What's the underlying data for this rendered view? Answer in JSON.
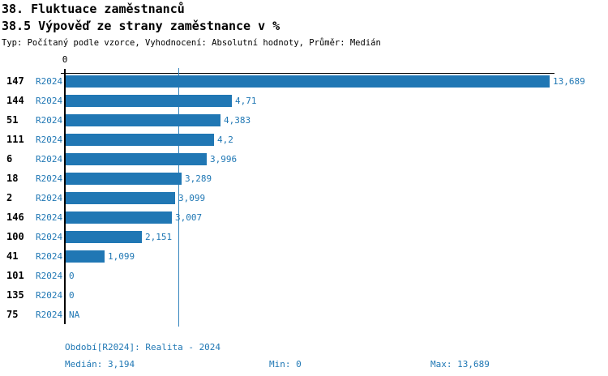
{
  "header": {
    "title_line1": "38. Fluktuace zaměstnanců",
    "title_line2": "38.5 Výpověď ze strany zaměstnance v %",
    "subtitle": "Typ: Počítaný podle vzorce, Vyhodnocení: Absolutní hodnoty, Průměr: Medián"
  },
  "chart": {
    "axis_zero_label": "0",
    "bar_color": "#2077b4",
    "median_line_color": "#3585bd",
    "max_value": 13.689,
    "median_value": 3.194,
    "rows": [
      {
        "id": "147",
        "period": "R2024",
        "value": 13.689,
        "value_label": "13,689"
      },
      {
        "id": "144",
        "period": "R2024",
        "value": 4.71,
        "value_label": "4,71"
      },
      {
        "id": "51",
        "period": "R2024",
        "value": 4.383,
        "value_label": "4,383"
      },
      {
        "id": "111",
        "period": "R2024",
        "value": 4.2,
        "value_label": "4,2"
      },
      {
        "id": "6",
        "period": "R2024",
        "value": 3.996,
        "value_label": "3,996"
      },
      {
        "id": "18",
        "period": "R2024",
        "value": 3.289,
        "value_label": "3,289"
      },
      {
        "id": "2",
        "period": "R2024",
        "value": 3.099,
        "value_label": "3,099"
      },
      {
        "id": "146",
        "period": "R2024",
        "value": 3.007,
        "value_label": "3,007"
      },
      {
        "id": "100",
        "period": "R2024",
        "value": 2.151,
        "value_label": "2,151"
      },
      {
        "id": "41",
        "period": "R2024",
        "value": 1.099,
        "value_label": "1,099"
      },
      {
        "id": "101",
        "period": "R2024",
        "value": 0,
        "value_label": "0"
      },
      {
        "id": "135",
        "period": "R2024",
        "value": 0,
        "value_label": "0"
      },
      {
        "id": "75",
        "period": "R2024",
        "value": null,
        "value_label": "NA"
      }
    ]
  },
  "chart_data": {
    "type": "bar",
    "orientation": "horizontal",
    "title": "38.5 Výpověď ze strany zaměstnance v %",
    "categories": [
      "147",
      "144",
      "51",
      "111",
      "6",
      "18",
      "2",
      "146",
      "100",
      "41",
      "101",
      "135",
      "75"
    ],
    "series": [
      {
        "name": "R2024",
        "values": [
          13.689,
          4.71,
          4.383,
          4.2,
          3.996,
          3.289,
          3.099,
          3.007,
          2.151,
          1.099,
          0,
          0,
          null
        ]
      }
    ],
    "value_labels": [
      "13,689",
      "4,71",
      "4,383",
      "4,2",
      "3,996",
      "3,289",
      "3,099",
      "3,007",
      "2,151",
      "1,099",
      "0",
      "0",
      "NA"
    ],
    "xlabel": "",
    "ylabel": "",
    "xlim": [
      0,
      13.689
    ],
    "grid": false,
    "legend_position": "none",
    "annotations": {
      "median_reference_line": 3.194
    }
  },
  "footer": {
    "period_label": "Období[R2024]: Realita - 2024",
    "median_label": "Medián: 3,194",
    "min_label": "Min: 0",
    "max_label": "Max: 13,689"
  }
}
